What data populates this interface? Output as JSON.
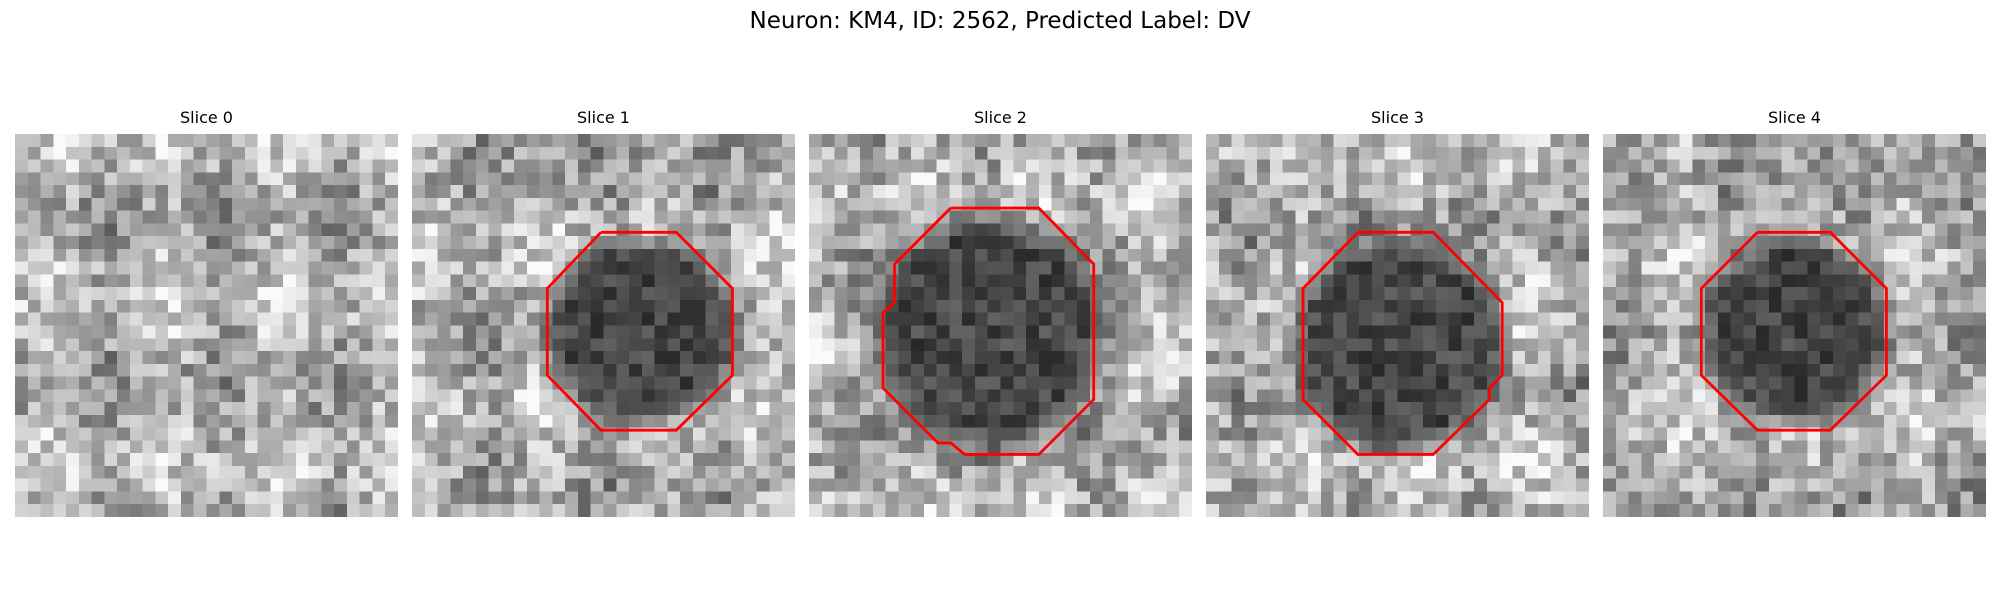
{
  "title": "Neuron: KM4, ID: 2562, Predicted Label: DV",
  "panels": [
    {
      "title": "Slice 0"
    },
    {
      "title": "Slice 1"
    },
    {
      "title": "Slice 2"
    },
    {
      "title": "Slice 3"
    },
    {
      "title": "Slice 4"
    }
  ]
}
